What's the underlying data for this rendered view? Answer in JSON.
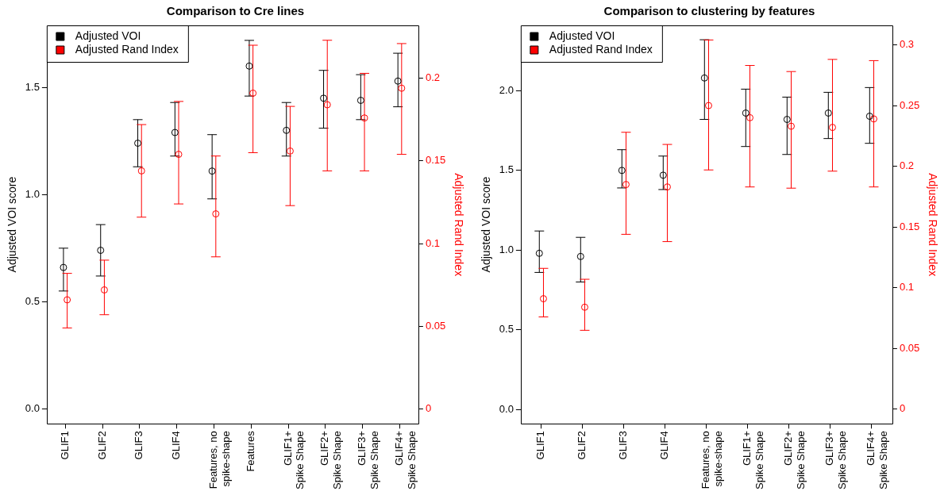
{
  "chart_data": [
    {
      "type": "scatter",
      "title": "Comparison to Cre lines",
      "ylabel": "Adjusted VOI score",
      "y2label": "Adjusted Rand Index",
      "marker": "circle",
      "legend": "top left",
      "categories": [
        "GLIF1",
        "GLIF2",
        "GLIF3",
        "GLIF4",
        "Features, no\nspike-shape",
        "Features",
        "GLIF1+\nSpike Shape",
        "GLIF2+\nSpike Shape",
        "GLIF3+\nSpike Shape",
        "GLIF4+\nSpike Shape"
      ],
      "ylim": [
        -0.07,
        1.79
      ],
      "yticks": [
        {
          "value": 0,
          "label": "0.0"
        },
        {
          "value": 0.5,
          "label": "0.5"
        },
        {
          "value": 1,
          "label": "1.0"
        },
        {
          "value": 1.5,
          "label": "1.5"
        }
      ],
      "y2lim": [
        -0.009,
        0.232
      ],
      "y2ticks": [
        0,
        0.05,
        0.1,
        0.15,
        0.2
      ],
      "series": [
        {
          "name": "Adjusted VOI",
          "color": "#000000",
          "values": [
            0.66,
            0.74,
            1.24,
            1.29,
            1.11,
            1.6,
            1.3,
            1.45,
            1.44,
            1.53
          ],
          "errors": [
            [
              0.55,
              0.75
            ],
            [
              0.62,
              0.86
            ],
            [
              1.13,
              1.35
            ],
            [
              1.18,
              1.43
            ],
            [
              0.98,
              1.28
            ],
            [
              1.46,
              1.72
            ],
            [
              1.18,
              1.43
            ],
            [
              1.31,
              1.58
            ],
            [
              1.35,
              1.56
            ],
            [
              1.41,
              1.66
            ]
          ]
        },
        {
          "name": "Adjusted Rand Index",
          "color": "#ff0000",
          "axis": "y2",
          "values": [
            0.066,
            0.072,
            0.144,
            0.154,
            0.118,
            0.191,
            0.156,
            0.184,
            0.176,
            0.194
          ],
          "errors": [
            [
              0.049,
              0.082
            ],
            [
              0.057,
              0.09
            ],
            [
              0.116,
              0.172
            ],
            [
              0.124,
              0.186
            ],
            [
              0.092,
              0.153
            ],
            [
              0.155,
              0.22
            ],
            [
              0.123,
              0.183
            ],
            [
              0.144,
              0.223
            ],
            [
              0.144,
              0.203
            ],
            [
              0.154,
              0.221
            ]
          ]
        }
      ]
    },
    {
      "type": "scatter",
      "title": "Comparison to clustering by features",
      "ylabel": "Adjusted VOI score",
      "y2label": "Adjusted Rand Index",
      "marker": "circle",
      "legend": "top left",
      "categories": [
        "GLIF1",
        "GLIF2",
        "GLIF3",
        "GLIF4",
        "Features, no\nspike-shape",
        "GLIF1+\nSpike Shape",
        "GLIF2+\nSpike Shape",
        "GLIF3+\nSpike Shape",
        "GLIF4+\nSpike Shape"
      ],
      "ylim": [
        -0.09,
        2.41
      ],
      "yticks": [
        {
          "value": 0,
          "label": "0.0"
        },
        {
          "value": 0.5,
          "label": "0.5"
        },
        {
          "value": 1,
          "label": "1.0"
        },
        {
          "value": 1.5,
          "label": "1.5"
        },
        {
          "value": 2,
          "label": "2.0"
        }
      ],
      "y2lim": [
        -0.012,
        0.316
      ],
      "y2ticks": [
        0,
        0.05,
        0.1,
        0.15,
        0.2,
        0.25,
        0.3
      ],
      "series": [
        {
          "name": "Adjusted VOI",
          "color": "#000000",
          "values": [
            0.98,
            0.96,
            1.5,
            1.47,
            2.08,
            1.86,
            1.82,
            1.86,
            1.84
          ],
          "errors": [
            [
              0.86,
              1.12
            ],
            [
              0.8,
              1.08
            ],
            [
              1.39,
              1.63
            ],
            [
              1.38,
              1.59
            ],
            [
              1.82,
              2.32
            ],
            [
              1.65,
              2.01
            ],
            [
              1.6,
              1.96
            ],
            [
              1.7,
              1.99
            ],
            [
              1.67,
              2.02
            ]
          ]
        },
        {
          "name": "Adjusted Rand Index",
          "color": "#ff0000",
          "axis": "y2",
          "values": [
            0.091,
            0.084,
            0.185,
            0.183,
            0.25,
            0.24,
            0.233,
            0.232,
            0.239
          ],
          "errors": [
            [
              0.076,
              0.116
            ],
            [
              0.065,
              0.107
            ],
            [
              0.144,
              0.228
            ],
            [
              0.138,
              0.218
            ],
            [
              0.197,
              0.304
            ],
            [
              0.183,
              0.283
            ],
            [
              0.182,
              0.278
            ],
            [
              0.196,
              0.288
            ],
            [
              0.183,
              0.287
            ]
          ]
        }
      ]
    }
  ]
}
